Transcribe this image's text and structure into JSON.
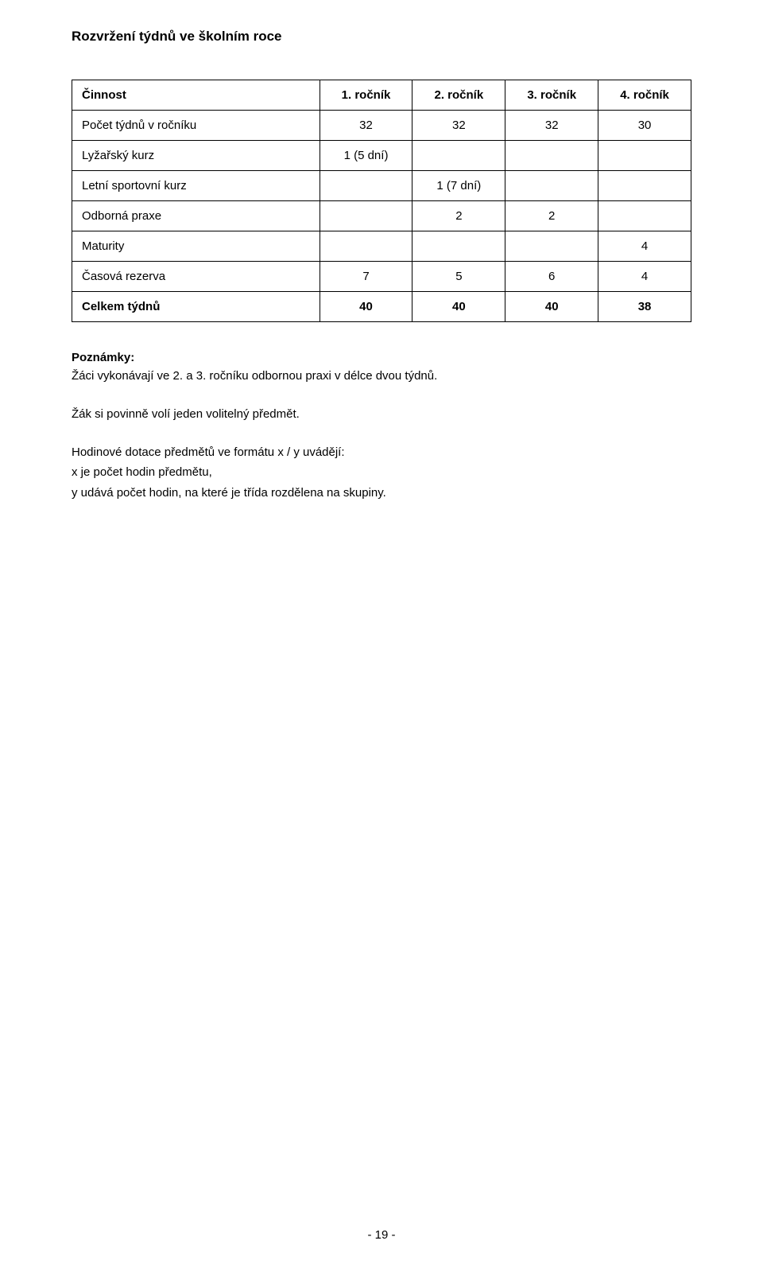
{
  "title": "Rozvržení týdnů ve školním roce",
  "table": {
    "columns": [
      "Činnost",
      "1. ročník",
      "2. ročník",
      "3. ročník",
      "4. ročník"
    ],
    "rows": [
      {
        "label": "Počet týdnů v ročníku",
        "cells": [
          "32",
          "32",
          "32",
          "30"
        ]
      },
      {
        "label": "Lyžařský kurz",
        "cells": [
          "1 (5 dní)",
          "",
          "",
          ""
        ]
      },
      {
        "label": "Letní sportovní kurz",
        "cells": [
          "",
          "1 (7 dní)",
          "",
          ""
        ]
      },
      {
        "label": "Odborná praxe",
        "cells": [
          "",
          "2",
          "2",
          ""
        ]
      },
      {
        "label": "Maturity",
        "cells": [
          "",
          "",
          "",
          "4"
        ]
      },
      {
        "label": "Časová rezerva",
        "cells": [
          "7",
          "5",
          "6",
          "4"
        ]
      }
    ],
    "total": {
      "label": "Celkem týdnů",
      "cells": [
        "40",
        "40",
        "40",
        "38"
      ]
    },
    "border_color": "#000000",
    "font_size_pt": 11,
    "background_color": "#ffffff"
  },
  "notes": {
    "heading": "Poznámky:",
    "line1": "Žáci vykonávají ve 2. a 3. ročníku odbornou praxi v délce dvou týdnů.",
    "line2": "Žák si povinně volí jeden volitelný předmět.",
    "line3a": "Hodinové dotace předmětů ve formátu x / y uvádějí:",
    "line3b": "x je počet hodin předmětu,",
    "line3c": "y udává počet hodin, na které je třída rozdělena na skupiny."
  },
  "page_number": "- 19 -"
}
